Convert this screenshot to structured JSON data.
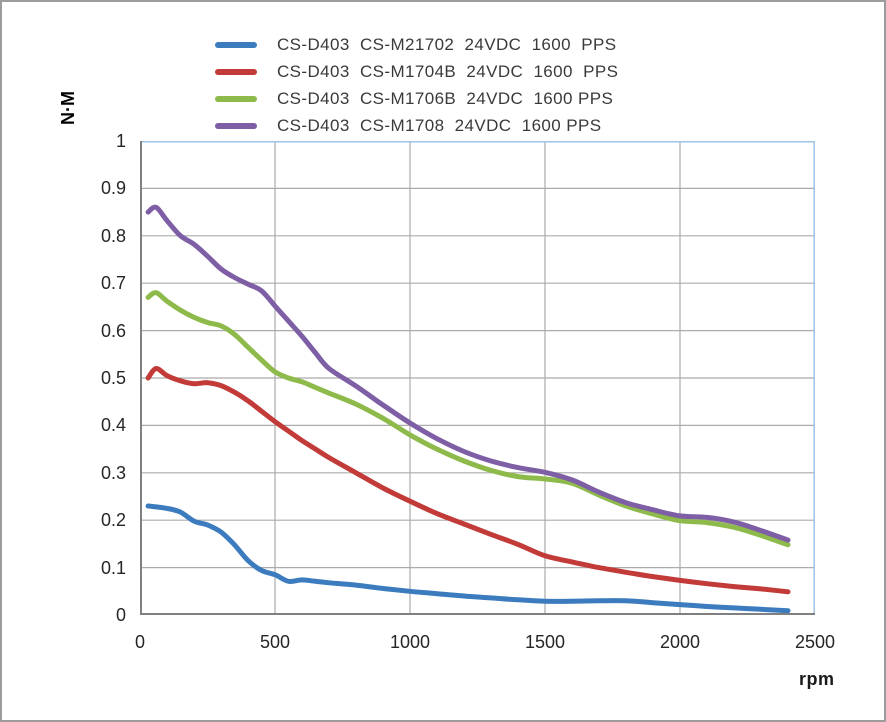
{
  "chart_data": {
    "type": "line",
    "title": "",
    "ylabel": "N·M",
    "xlabel": "rpm",
    "xlim": [
      0,
      2500
    ],
    "ylim": [
      0,
      1
    ],
    "xticks": [
      0,
      500,
      1000,
      1500,
      2000,
      2500
    ],
    "yticks": [
      "0",
      "0.1",
      "0.2",
      "0.3",
      "0.4",
      "0.5",
      "0.6",
      "0.7",
      "0.8",
      "0.9",
      "1"
    ],
    "grid": true,
    "legend_position": "top-center",
    "x": [
      30,
      60,
      100,
      150,
      200,
      250,
      300,
      350,
      400,
      450,
      500,
      550,
      600,
      650,
      700,
      800,
      900,
      1000,
      1100,
      1200,
      1300,
      1400,
      1500,
      1600,
      1700,
      1800,
      1900,
      2000,
      2100,
      2200,
      2300,
      2400
    ],
    "series": [
      {
        "name": "CS-D403  CS-M21702  24VDC  1600  PPS",
        "color": "#3b7bbe",
        "values": [
          0.23,
          0.228,
          0.225,
          0.217,
          0.198,
          0.19,
          0.175,
          0.148,
          0.115,
          0.094,
          0.085,
          0.071,
          0.074,
          0.071,
          0.068,
          0.063,
          0.056,
          0.05,
          0.045,
          0.04,
          0.036,
          0.032,
          0.029,
          0.029,
          0.03,
          0.03,
          0.026,
          0.022,
          0.018,
          0.015,
          0.012,
          0.009
        ]
      },
      {
        "name": "CS-D403  CS-M1704B  24VDC  1600  PPS",
        "color": "#c23b38",
        "values": [
          0.5,
          0.52,
          0.505,
          0.494,
          0.488,
          0.49,
          0.484,
          0.47,
          0.452,
          0.43,
          0.408,
          0.388,
          0.368,
          0.35,
          0.332,
          0.3,
          0.268,
          0.24,
          0.214,
          0.192,
          0.17,
          0.149,
          0.125,
          0.112,
          0.1,
          0.09,
          0.081,
          0.073,
          0.066,
          0.06,
          0.055,
          0.049
        ]
      },
      {
        "name": "CS-D403  CS-M1706B  24VDC  1600 PPS",
        "color": "#8dba4a",
        "values": [
          0.67,
          0.68,
          0.662,
          0.643,
          0.628,
          0.617,
          0.61,
          0.592,
          0.565,
          0.538,
          0.513,
          0.5,
          0.492,
          0.48,
          0.468,
          0.445,
          0.415,
          0.38,
          0.35,
          0.325,
          0.305,
          0.292,
          0.287,
          0.278,
          0.253,
          0.23,
          0.213,
          0.199,
          0.195,
          0.185,
          0.168,
          0.148
        ]
      },
      {
        "name": "CS-D403  CS-M1708  24VDC  1600 PPS",
        "color": "#7e5fa5",
        "values": [
          0.85,
          0.86,
          0.832,
          0.8,
          0.782,
          0.757,
          0.73,
          0.712,
          0.698,
          0.684,
          0.652,
          0.62,
          0.588,
          0.553,
          0.52,
          0.483,
          0.443,
          0.405,
          0.372,
          0.345,
          0.325,
          0.311,
          0.301,
          0.285,
          0.259,
          0.237,
          0.222,
          0.209,
          0.206,
          0.196,
          0.178,
          0.158
        ]
      }
    ]
  },
  "colors": {
    "grid": "#ababab",
    "axis": "#808080",
    "plot_border_light": "#9dc3e6"
  }
}
